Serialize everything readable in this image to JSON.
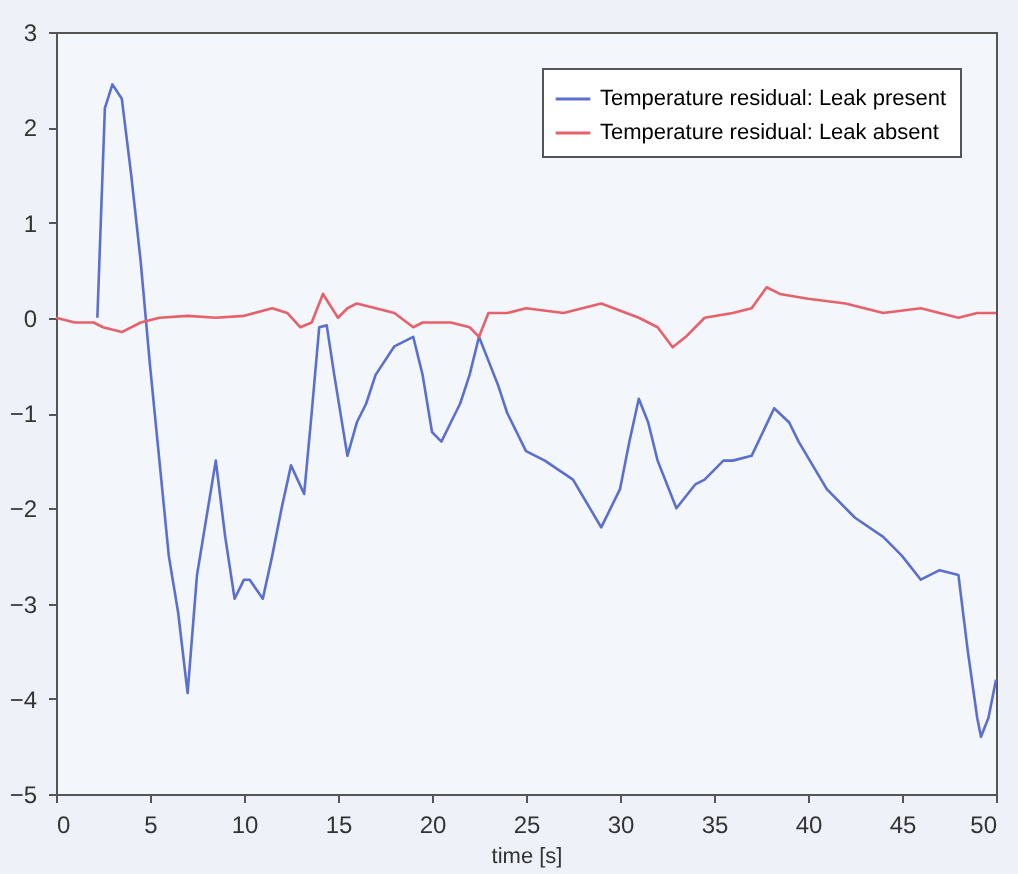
{
  "chart_data": {
    "type": "line",
    "xlabel": "time [s]",
    "xlim": [
      0,
      50
    ],
    "xticks": [
      0,
      5,
      10,
      15,
      20,
      25,
      30,
      35,
      40,
      45,
      50
    ],
    "ylim": [
      -5,
      3
    ],
    "yticks": [
      -5,
      -4,
      -3,
      -2,
      -1,
      0,
      1,
      2,
      3
    ],
    "grid": false,
    "legend": "top right",
    "line_style": "solid",
    "marker": "none",
    "series": [
      {
        "name": "Temperature residual: Leak present",
        "color": "#5a6fd0",
        "x": [
          2.2,
          2.6,
          3,
          3.5,
          4,
          4.5,
          5,
          5.5,
          6,
          6.5,
          7,
          7.5,
          8,
          8.5,
          9,
          9.5,
          10,
          10.3,
          11,
          11.5,
          12,
          12.5,
          13.2,
          13.6,
          14,
          14.4,
          14.8,
          15.5,
          16,
          16.5,
          17,
          18,
          19,
          19.5,
          20,
          20.5,
          21,
          21.5,
          22,
          22.5,
          23,
          23.5,
          24,
          25,
          26,
          27.5,
          29,
          30,
          30.5,
          31,
          31.5,
          32,
          33,
          34,
          34.5,
          35.5,
          36,
          37,
          38.2,
          39,
          39.5,
          41,
          42.5,
          44,
          45,
          46,
          47,
          48,
          48.5,
          49,
          49.2,
          49.6,
          50
        ],
        "values": [
          0,
          2.2,
          2.45,
          2.3,
          1.5,
          0.6,
          -0.5,
          -1.5,
          -2.5,
          -3.1,
          -3.94,
          -2.7,
          -2.1,
          -1.5,
          -2.3,
          -2.95,
          -2.75,
          -2.75,
          -2.95,
          -2.5,
          -2,
          -1.55,
          -1.85,
          -1,
          -0.1,
          -0.08,
          -0.6,
          -1.45,
          -1.1,
          -0.9,
          -0.6,
          -0.3,
          -0.2,
          -0.6,
          -1.2,
          -1.3,
          -1.1,
          -0.9,
          -0.6,
          -0.2,
          -0.45,
          -0.7,
          -1,
          -1.4,
          -1.5,
          -1.7,
          -2.2,
          -1.8,
          -1.3,
          -0.85,
          -1.1,
          -1.5,
          -2,
          -1.75,
          -1.7,
          -1.5,
          -1.5,
          -1.45,
          -0.95,
          -1.1,
          -1.3,
          -1.8,
          -2.1,
          -2.3,
          -2.5,
          -2.75,
          -2.65,
          -2.7,
          -3.5,
          -4.2,
          -4.4,
          -4.2,
          -3.8
        ]
      },
      {
        "name": "Temperature residual: Leak absent",
        "color": "#e8606a",
        "x": [
          0,
          1,
          2,
          2.5,
          3.5,
          4.5,
          5.5,
          7,
          8.5,
          10,
          11.5,
          12.3,
          13,
          13.6,
          14.2,
          15,
          15.5,
          16,
          17,
          18,
          19,
          19.5,
          21,
          22,
          22.5,
          23,
          24,
          25,
          27,
          29,
          31,
          32,
          32.8,
          33.5,
          34.5,
          36,
          37,
          37.8,
          38.5,
          40,
          42,
          44,
          46,
          48,
          49,
          50
        ],
        "values": [
          0,
          -0.05,
          -0.05,
          -0.1,
          -0.15,
          -0.05,
          0,
          0.02,
          0,
          0.02,
          0.1,
          0.05,
          -0.1,
          -0.05,
          0.25,
          0,
          0.1,
          0.15,
          0.1,
          0.05,
          -0.1,
          -0.05,
          -0.05,
          -0.1,
          -0.2,
          0.05,
          0.05,
          0.1,
          0.05,
          0.15,
          0,
          -0.1,
          -0.31,
          -0.2,
          0,
          0.05,
          0.1,
          0.32,
          0.25,
          0.2,
          0.15,
          0.05,
          0.1,
          0,
          0.05,
          0.05
        ]
      }
    ]
  }
}
